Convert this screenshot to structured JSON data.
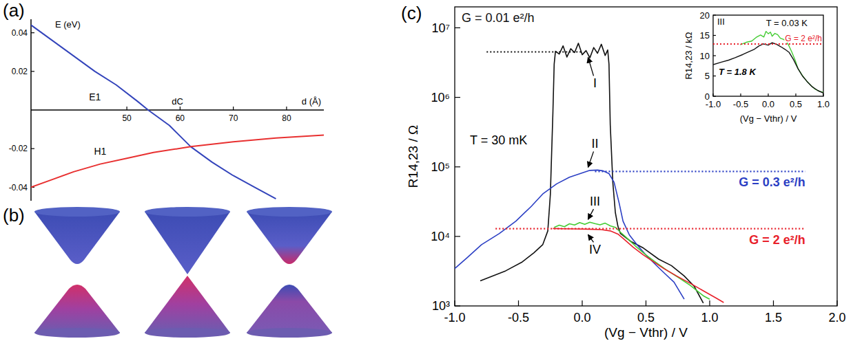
{
  "chart_data": [
    {
      "type": "line",
      "panel_label": "(a)",
      "x_label": "d (Å)",
      "y_label": "E (eV)",
      "annotations": [
        "dC"
      ],
      "xlim": [
        32,
        87
      ],
      "ylim": [
        -0.047,
        0.047
      ],
      "xticks": [
        50,
        60,
        70,
        80
      ],
      "yticks": [
        -0.04,
        -0.02,
        0.02,
        0.04
      ],
      "grid": false,
      "series": [
        {
          "name": "E1",
          "color": "#3344bb",
          "line_style": "solid",
          "x": [
            32,
            36,
            40,
            44,
            48,
            52,
            54,
            58,
            62,
            66,
            70,
            74,
            78
          ],
          "values": [
            0.044,
            0.036,
            0.028,
            0.02,
            0.013,
            0.0045,
            0,
            -0.008,
            -0.019,
            -0.027,
            -0.034,
            -0.04,
            -0.046
          ]
        },
        {
          "name": "H1",
          "color": "#e83030",
          "line_style": "solid",
          "x": [
            32,
            36,
            40,
            45,
            50,
            55,
            62,
            70,
            78,
            87
          ],
          "values": [
            -0.04,
            -0.036,
            -0.032,
            -0.028,
            -0.025,
            -0.022,
            -0.019,
            -0.0165,
            -0.0145,
            -0.013
          ]
        }
      ]
    },
    {
      "type": "line",
      "log": "y",
      "panel_label": "(c)",
      "x_label": "(Vg − Vthr) / V",
      "y_label": "R14,23 / Ω",
      "annotations": [
        "T = 30 mK"
      ],
      "xlim": [
        -1,
        2
      ],
      "ylim": [
        1000,
        20000000
      ],
      "xticks": [
        {
          "value": -1,
          "label": "-1.0"
        },
        -0.5,
        {
          "value": 0,
          "label": "0.0"
        },
        0.5,
        {
          "value": 1,
          "label": "1.0"
        },
        1.5,
        {
          "value": 2,
          "label": "2.0"
        }
      ],
      "yticks": [
        {
          "value": 1000,
          "label": "10³"
        },
        {
          "value": 10000,
          "label": "10⁴"
        },
        {
          "value": 100000,
          "label": "10⁵"
        },
        {
          "value": 1000000,
          "label": "10⁶"
        },
        {
          "value": 10000000,
          "label": "10⁷"
        }
      ],
      "grid": false,
      "series": [
        {
          "name": "I",
          "color": "#111111",
          "line_style": "solid",
          "x": [
            -0.8,
            -0.6,
            -0.47,
            -0.38,
            -0.31,
            -0.27,
            -0.25,
            -0.23,
            -0.22,
            -0.21,
            -0.18,
            -0.15,
            -0.12,
            -0.09,
            -0.06,
            -0.03,
            0,
            0.03,
            0.06,
            0.09,
            0.12,
            0.15,
            0.18,
            0.2,
            0.21,
            0.22,
            0.24,
            0.26,
            0.28,
            0.3,
            0.38,
            0.48,
            0.6,
            0.7,
            0.8,
            0.88,
            0.95
          ],
          "values": [
            2300,
            3200,
            4300,
            5800,
            7600,
            12000,
            40000,
            600000,
            3000000,
            4600000,
            4200000,
            5500000,
            3800000,
            5000000,
            4400000,
            6000000,
            4100000,
            4700000,
            3700000,
            5200000,
            4300000,
            5800000,
            4000000,
            4800000,
            3000000,
            400000,
            60000,
            22000,
            14000,
            11000,
            8500,
            6800,
            4700,
            3800,
            2700,
            1900,
            1100
          ]
        },
        {
          "name": "II",
          "color": "#2b3fc4",
          "line_style": "solid",
          "x": [
            -1.0,
            -0.9,
            -0.79,
            -0.65,
            -0.52,
            -0.4,
            -0.31,
            -0.2,
            -0.1,
            0,
            0.06,
            0.12,
            0.16,
            0.21,
            0.25,
            0.29,
            0.32,
            0.37,
            0.43,
            0.5,
            0.58,
            0.65,
            0.72,
            0.8
          ],
          "values": [
            3450,
            5000,
            7600,
            11000,
            16600,
            27000,
            40700,
            57000,
            71000,
            82000,
            89000,
            90000,
            88000,
            80000,
            60000,
            30000,
            16600,
            10500,
            7600,
            5400,
            3850,
            2900,
            2200,
            1250
          ]
        },
        {
          "name": "III",
          "color": "#44cc33",
          "line_style": "solid",
          "x": [
            -0.22,
            -0.18,
            -0.14,
            -0.1,
            -0.06,
            -0.02,
            0.02,
            0.06,
            0.1,
            0.14,
            0.18,
            0.22,
            0.26,
            0.3,
            0.35,
            0.42,
            0.5,
            0.58,
            0.66,
            0.75,
            0.85,
            0.95,
            1.0
          ],
          "values": [
            13500,
            14500,
            13800,
            15200,
            14600,
            15800,
            14900,
            16000,
            15300,
            14700,
            15500,
            14200,
            13500,
            11500,
            9500,
            7200,
            5400,
            4200,
            3300,
            2600,
            1960,
            1400,
            1250
          ]
        },
        {
          "name": "IV",
          "color": "#e8202a",
          "line_style": "solid",
          "x": [
            -0.23,
            -0.15,
            -0.05,
            0.05,
            0.15,
            0.22,
            0.28,
            0.32,
            0.4,
            0.48,
            0.56,
            0.64,
            0.74,
            0.85,
            0.95,
            1.05,
            1.11
          ],
          "values": [
            13000,
            12900,
            12800,
            12700,
            12500,
            12000,
            10800,
            9400,
            7000,
            5400,
            4300,
            3450,
            2700,
            2100,
            1650,
            1300,
            1120
          ]
        },
        {
          "name": "G = 0.01 e²/h",
          "color": "#111111",
          "line_style": "dotted",
          "x": [
            -0.75,
            0
          ],
          "values": [
            4500000,
            4500000
          ]
        },
        {
          "name": "G = 0.3 e²/h",
          "color": "#2b3fc4",
          "line_style": "dotted",
          "x": [
            0.1,
            1.75
          ],
          "values": [
            86000,
            86000
          ]
        },
        {
          "name": "G = 2 e²/h",
          "color": "#e8202a",
          "line_style": "dotted",
          "x": [
            -0.68,
            1.75
          ],
          "values": [
            12900,
            12900
          ]
        }
      ]
    },
    {
      "type": "line",
      "title": "III",
      "x_label": "(Vg − Vthr) / V",
      "y_label": "R14,23 / kΩ",
      "xlim": [
        -1,
        1
      ],
      "ylim": [
        0,
        20
      ],
      "xticks": [
        {
          "value": -1,
          "label": "-1.0"
        },
        -0.5,
        {
          "value": 0,
          "label": "0.0"
        },
        0.5,
        {
          "value": 1,
          "label": "1.0"
        }
      ],
      "yticks": [
        0,
        5,
        10,
        15,
        20
      ],
      "grid": false,
      "series": [
        {
          "name": "T = 0.03 K",
          "color": "#44cc33",
          "line_style": "solid",
          "x": [
            -0.51,
            -0.4,
            -0.3,
            -0.22,
            -0.14,
            -0.08,
            -0.04,
            0.0,
            0.04,
            0.07,
            0.12,
            0.17,
            0.22,
            0.28,
            0.33,
            0.38,
            0.43,
            0.49,
            0.54,
            0.62,
            0.7,
            0.78,
            0.85,
            0.93,
            1.0
          ],
          "values": [
            12.7,
            13.3,
            13.6,
            14.5,
            15.1,
            14.6,
            16.0,
            15.4,
            15.8,
            14.8,
            15.5,
            15.2,
            14.3,
            14.0,
            13.5,
            12.3,
            10.8,
            8.8,
            6.8,
            5.1,
            3.7,
            2.6,
            1.75,
            1.2,
            1.0
          ]
        },
        {
          "name": "T = 1.8 K",
          "color": "#111111",
          "line_style": "solid",
          "x": [
            -1.0,
            -0.85,
            -0.72,
            -0.6,
            -0.46,
            -0.35,
            -0.25,
            -0.17,
            -0.09,
            0.0,
            0.07,
            0.15,
            0.23,
            0.3,
            0.38,
            0.46,
            0.54,
            0.62,
            0.7,
            0.8,
            0.9,
            1.0
          ],
          "values": [
            7.8,
            8.4,
            8.9,
            9.5,
            10.3,
            11.0,
            11.6,
            12.4,
            12.9,
            12.6,
            13.2,
            12.8,
            12.2,
            11.6,
            10.8,
            9.0,
            6.8,
            5.0,
            3.7,
            2.3,
            1.4,
            0.8
          ]
        },
        {
          "name": "G = 2 e²/h",
          "color": "#e8202a",
          "line_style": "dotted",
          "x": [
            -1.0,
            1.0
          ],
          "values": [
            12.9,
            12.9
          ]
        }
      ]
    }
  ],
  "diagram": {
    "panel_label": "(b)"
  }
}
